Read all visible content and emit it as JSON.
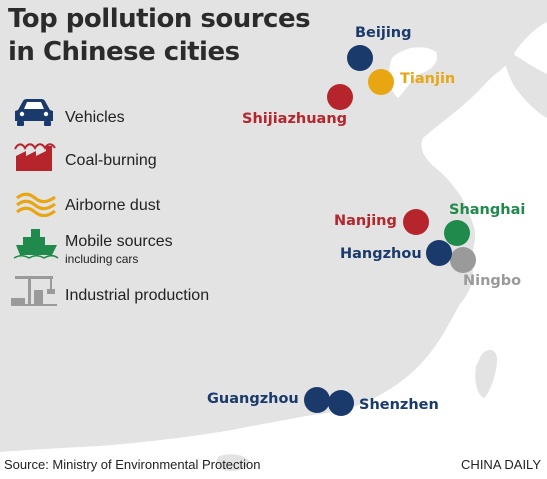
{
  "title": {
    "line1": "Top pollution sources",
    "line2": "in Chinese cities"
  },
  "legend": [
    {
      "label": "Vehicles",
      "sub": "",
      "color": "#1a3a6b",
      "icon": "car-icon"
    },
    {
      "label": "Coal-burning",
      "sub": "",
      "color": "#b5252b",
      "icon": "factory-icon"
    },
    {
      "label": "Airborne dust",
      "sub": "",
      "color": "#e8a613",
      "icon": "dust-waves-icon"
    },
    {
      "label": "Mobile sources",
      "sub": "including cars",
      "color": "#1f8a4c",
      "icon": "ship-icon"
    },
    {
      "label": "Industrial production",
      "sub": "",
      "color": "#9a9a9a",
      "icon": "industrial-crane-icon"
    }
  ],
  "cities": [
    {
      "name": "Beijing",
      "source": "Vehicles",
      "color": "#1a3a6b"
    },
    {
      "name": "Tianjin",
      "source": "Airborne dust",
      "color": "#e8a613"
    },
    {
      "name": "Shijiazhuang",
      "source": "Coal-burning",
      "color": "#b5252b"
    },
    {
      "name": "Nanjing",
      "source": "Coal-burning",
      "color": "#b5252b"
    },
    {
      "name": "Shanghai",
      "source": "Mobile sources",
      "color": "#1f8a4c"
    },
    {
      "name": "Hangzhou",
      "source": "Vehicles",
      "color": "#1a3a6b"
    },
    {
      "name": "Ningbo",
      "source": "Industrial production",
      "color": "#9a9a9a"
    },
    {
      "name": "Guangzhou",
      "source": "Vehicles",
      "color": "#1a3a6b"
    },
    {
      "name": "Shenzhen",
      "source": "Vehicles",
      "color": "#1a3a6b"
    }
  ],
  "footer": {
    "source": "Source: Ministry of Environmental Protection",
    "credit": "CHINA DAILY"
  },
  "colors": {
    "land": "#e3e3e3",
    "coast": "#ffffff",
    "background": "#ffffff"
  }
}
